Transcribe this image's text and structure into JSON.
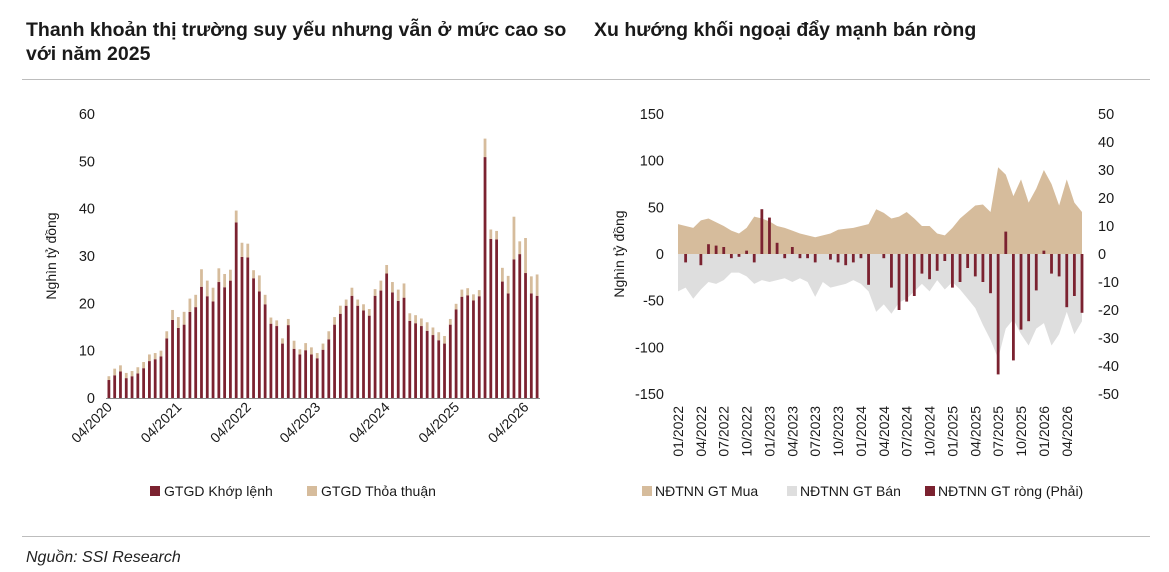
{
  "titles": {
    "left": "Thanh khoản thị trường suy yếu nhưng vẫn ở mức cao so với năm 2025",
    "right": "Xu hướng khối ngoại đẩy mạnh bán ròng"
  },
  "source": "Nguồn: SSI Research",
  "colors": {
    "dark_red": "#7b2230",
    "tan": "#d6bc9c",
    "light_gray": "#dedede"
  },
  "chart_data": [
    {
      "type": "bar",
      "stacked": true,
      "ylabel": "Nghìn tỷ đồng",
      "ylim": [
        0,
        60
      ],
      "yticks": [
        0,
        10,
        20,
        30,
        40,
        50,
        60
      ],
      "xtick_labels": [
        "04/2020",
        "04/2021",
        "04/2022",
        "04/2023",
        "04/2024",
        "04/2025",
        "04/2026"
      ],
      "xtick_index": [
        0,
        12,
        24,
        36,
        48,
        60,
        72
      ],
      "legend_position": "bottom",
      "series": [
        {
          "name": "GTGD Khớp lệnh",
          "values": [
            3.8,
            4.8,
            5.6,
            4.2,
            4.6,
            5.2,
            6.3,
            7.8,
            8.2,
            8.8,
            12.6,
            16.5,
            14.8,
            15.5,
            18.2,
            19.2,
            23.5,
            21.5,
            20.4,
            24.5,
            23.4,
            24.8,
            37.1,
            29.8,
            29.7,
            25.3,
            22.5,
            19.8,
            15.7,
            15.2,
            11.5,
            15.4,
            10.4,
            9.2,
            10.1,
            9.2,
            8.4,
            10.2,
            12.4,
            15.5,
            17.8,
            19.5,
            21.6,
            19.5,
            18.5,
            17.4,
            21.6,
            22.7,
            26.3,
            22.3,
            20.5,
            21.2,
            16.3,
            15.8,
            15.2,
            14.2,
            13.3,
            12.2,
            11.5,
            15.5,
            18.7,
            21.4,
            21.7,
            20.6,
            21.5,
            50.9,
            33.6,
            33.5,
            24.6,
            22.1,
            29.3,
            30.4,
            26.4,
            22.1,
            21.6
          ]
        },
        {
          "name": "GTGD Thỏa thuận",
          "values": [
            0.8,
            1.4,
            1.3,
            1.1,
            1.1,
            1.3,
            1.3,
            1.4,
            1.3,
            1.2,
            1.5,
            2.1,
            2.3,
            2.7,
            2.8,
            2.6,
            3.7,
            3.3,
            2.9,
            2.9,
            2.8,
            2.3,
            2.5,
            3.0,
            2.9,
            1.7,
            3.4,
            2.0,
            1.3,
            1.2,
            1.1,
            1.3,
            1.7,
            1.1,
            1.5,
            1.5,
            1.1,
            1.3,
            1.7,
            1.6,
            1.7,
            1.3,
            1.7,
            1.3,
            1.3,
            1.4,
            1.4,
            2.1,
            1.8,
            2.2,
            2.4,
            3.0,
            1.6,
            1.7,
            1.6,
            1.8,
            1.6,
            1.7,
            1.6,
            1.2,
            1.2,
            1.5,
            1.5,
            1.3,
            1.3,
            3.9,
            2.0,
            1.8,
            2.9,
            3.7,
            9.0,
            2.7,
            7.4,
            3.6,
            4.5
          ]
        }
      ]
    },
    {
      "type": "area",
      "ylabel": "Nghìn tỷ đồng",
      "ylim": [
        -150,
        150
      ],
      "yticks": [
        -150,
        -100,
        -50,
        0,
        50,
        100,
        150
      ],
      "y2lim": [
        -50,
        50
      ],
      "y2ticks": [
        -50,
        -40,
        -30,
        -20,
        -10,
        0,
        10,
        20,
        30,
        40,
        50
      ],
      "xtick_labels": [
        "01/2022",
        "04/2022",
        "07/2022",
        "10/2022",
        "01/2023",
        "04/2023",
        "07/2023",
        "10/2023",
        "01/2024",
        "04/2024",
        "07/2024",
        "10/2024",
        "01/2025",
        "04/2025",
        "07/2025",
        "10/2025",
        "01/2026",
        "04/2026"
      ],
      "xtick_index": [
        0,
        3,
        6,
        9,
        12,
        15,
        18,
        21,
        24,
        27,
        30,
        33,
        36,
        39,
        42,
        45,
        48,
        51
      ],
      "legend_position": "bottom",
      "series": [
        {
          "name": "NĐTNN GT Mua",
          "axis": "left",
          "values": [
            32,
            30,
            28,
            36,
            38,
            34,
            30,
            25,
            22,
            28,
            40,
            38,
            35,
            30,
            28,
            25,
            22,
            20,
            18,
            20,
            22,
            26,
            27,
            28,
            30,
            32,
            48,
            44,
            38,
            40,
            45,
            38,
            30,
            30,
            22,
            20,
            28,
            38,
            45,
            52,
            53,
            45,
            93,
            85,
            62,
            80,
            55,
            70,
            90,
            75,
            52,
            80,
            55,
            45
          ]
        },
        {
          "name": "NĐTNN GT Bán",
          "axis": "left",
          "values": [
            -40,
            -36,
            -48,
            -38,
            -30,
            -32,
            -28,
            -20,
            -20,
            -24,
            -32,
            -28,
            -30,
            -28,
            -26,
            -30,
            -26,
            -30,
            -46,
            -30,
            -36,
            -34,
            -32,
            -28,
            -32,
            -40,
            -62,
            -54,
            -64,
            -52,
            -48,
            -40,
            -32,
            -40,
            -28,
            -38,
            -30,
            -38,
            -48,
            -58,
            -76,
            -92,
            -112,
            -80,
            -70,
            -86,
            -98,
            -80,
            -74,
            -98,
            -86,
            -62,
            -86,
            -72
          ]
        },
        {
          "name": "NĐTNN GT ròng (Phải)",
          "axis": "right",
          "type": "bar",
          "values": [
            0,
            -3,
            0,
            -4,
            3.5,
            3,
            2.5,
            -1.5,
            -1,
            1.2,
            -3,
            16,
            13,
            4,
            -1.5,
            2.5,
            -1.5,
            -1.5,
            -3,
            0,
            -2,
            -3,
            -4,
            -3,
            -1.5,
            -11,
            0,
            -1.5,
            -12,
            -20,
            -17,
            -15,
            -7,
            -9,
            -6,
            -2.5,
            -12,
            -10,
            -5,
            -8,
            -10,
            -14,
            -43,
            8,
            -38,
            -27,
            -24,
            -13,
            1.2,
            -7,
            -8,
            -19,
            -15,
            -21
          ]
        }
      ]
    }
  ]
}
